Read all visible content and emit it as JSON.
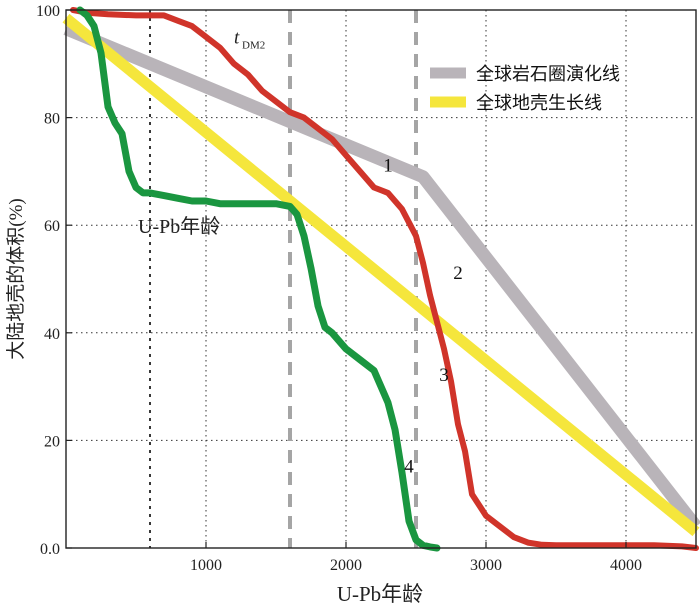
{
  "chart_data": {
    "type": "line",
    "xlabel": "U-Pb年龄",
    "ylabel": "大陆地壳的体积(%)",
    "xlim": [
      0,
      4500
    ],
    "ylim": [
      0,
      100
    ],
    "x_ticks": [
      1000,
      2000,
      3000,
      4000
    ],
    "x_tick_labels": [
      "1000",
      "2000",
      "3000",
      "4000"
    ],
    "y_ticks": [
      0,
      20,
      40,
      60,
      80,
      100
    ],
    "y_tick_labels": [
      "0.0",
      "20",
      "40",
      "60",
      "80",
      "100"
    ],
    "grid": "dotted",
    "legend_position": "top-right",
    "reference_lines": [
      {
        "x": 600,
        "style": "dotted-black"
      },
      {
        "x": 1600,
        "style": "dashed-gray"
      },
      {
        "x": 2500,
        "style": "dashed-gray"
      }
    ],
    "annotations": [
      {
        "text": "U-Pb年龄",
        "x": 600,
        "y": 60
      },
      {
        "text": "t",
        "subscript": "DM2",
        "x": 1300,
        "y": 94
      }
    ],
    "series": [
      {
        "name": "全球岩石圈演化线",
        "label": "1",
        "color": "#b9b4b9",
        "width": 13,
        "x": [
          0,
          2550,
          4500
        ],
        "y": [
          96.5,
          69,
          4
        ]
      },
      {
        "name": "全球地壳生长线",
        "label": "2",
        "color": "#f5e63c",
        "width": 11,
        "x": [
          0,
          4500
        ],
        "y": [
          98.5,
          3
        ]
      },
      {
        "name": "",
        "label": "3",
        "color": "#d0342a",
        "width": 6,
        "x": [
          50,
          150,
          300,
          500,
          700,
          800,
          900,
          1000,
          1100,
          1200,
          1300,
          1400,
          1500,
          1600,
          1700,
          1800,
          1900,
          2000,
          2100,
          2200,
          2300,
          2400,
          2500,
          2550,
          2600,
          2650,
          2700,
          2750,
          2800,
          2850,
          2900,
          3000,
          3100,
          3200,
          3300,
          3400,
          3500,
          3600,
          3700,
          4000,
          4200,
          4400,
          4500
        ],
        "y": [
          100,
          99.5,
          99.2,
          99,
          99,
          98,
          97,
          95,
          93,
          90,
          88,
          85,
          83,
          81,
          80,
          78,
          76,
          73,
          70,
          67,
          66,
          63,
          58,
          53,
          47,
          42,
          37,
          31,
          23,
          18,
          10,
          6,
          4,
          2,
          1,
          0.6,
          0.5,
          0.5,
          0.5,
          0.5,
          0.5,
          0.3,
          0
        ]
      },
      {
        "name": "",
        "label": "4",
        "color": "#1a9640",
        "width": 7,
        "x": [
          100,
          150,
          200,
          250,
          300,
          350,
          400,
          450,
          500,
          550,
          600,
          700,
          800,
          900,
          1000,
          1100,
          1200,
          1300,
          1400,
          1500,
          1600,
          1650,
          1700,
          1750,
          1800,
          1850,
          1900,
          2000,
          2100,
          2200,
          2300,
          2350,
          2400,
          2450,
          2500,
          2550,
          2600,
          2650
        ],
        "y": [
          100,
          99,
          97,
          92,
          82,
          79,
          77,
          70,
          67,
          66,
          66,
          65.5,
          65,
          64.5,
          64.5,
          64,
          64,
          64,
          64,
          64,
          63.5,
          62,
          58,
          52,
          45,
          41,
          40,
          37,
          35,
          33,
          27,
          22,
          14,
          5,
          1.5,
          0.5,
          0.2,
          0
        ]
      }
    ]
  }
}
